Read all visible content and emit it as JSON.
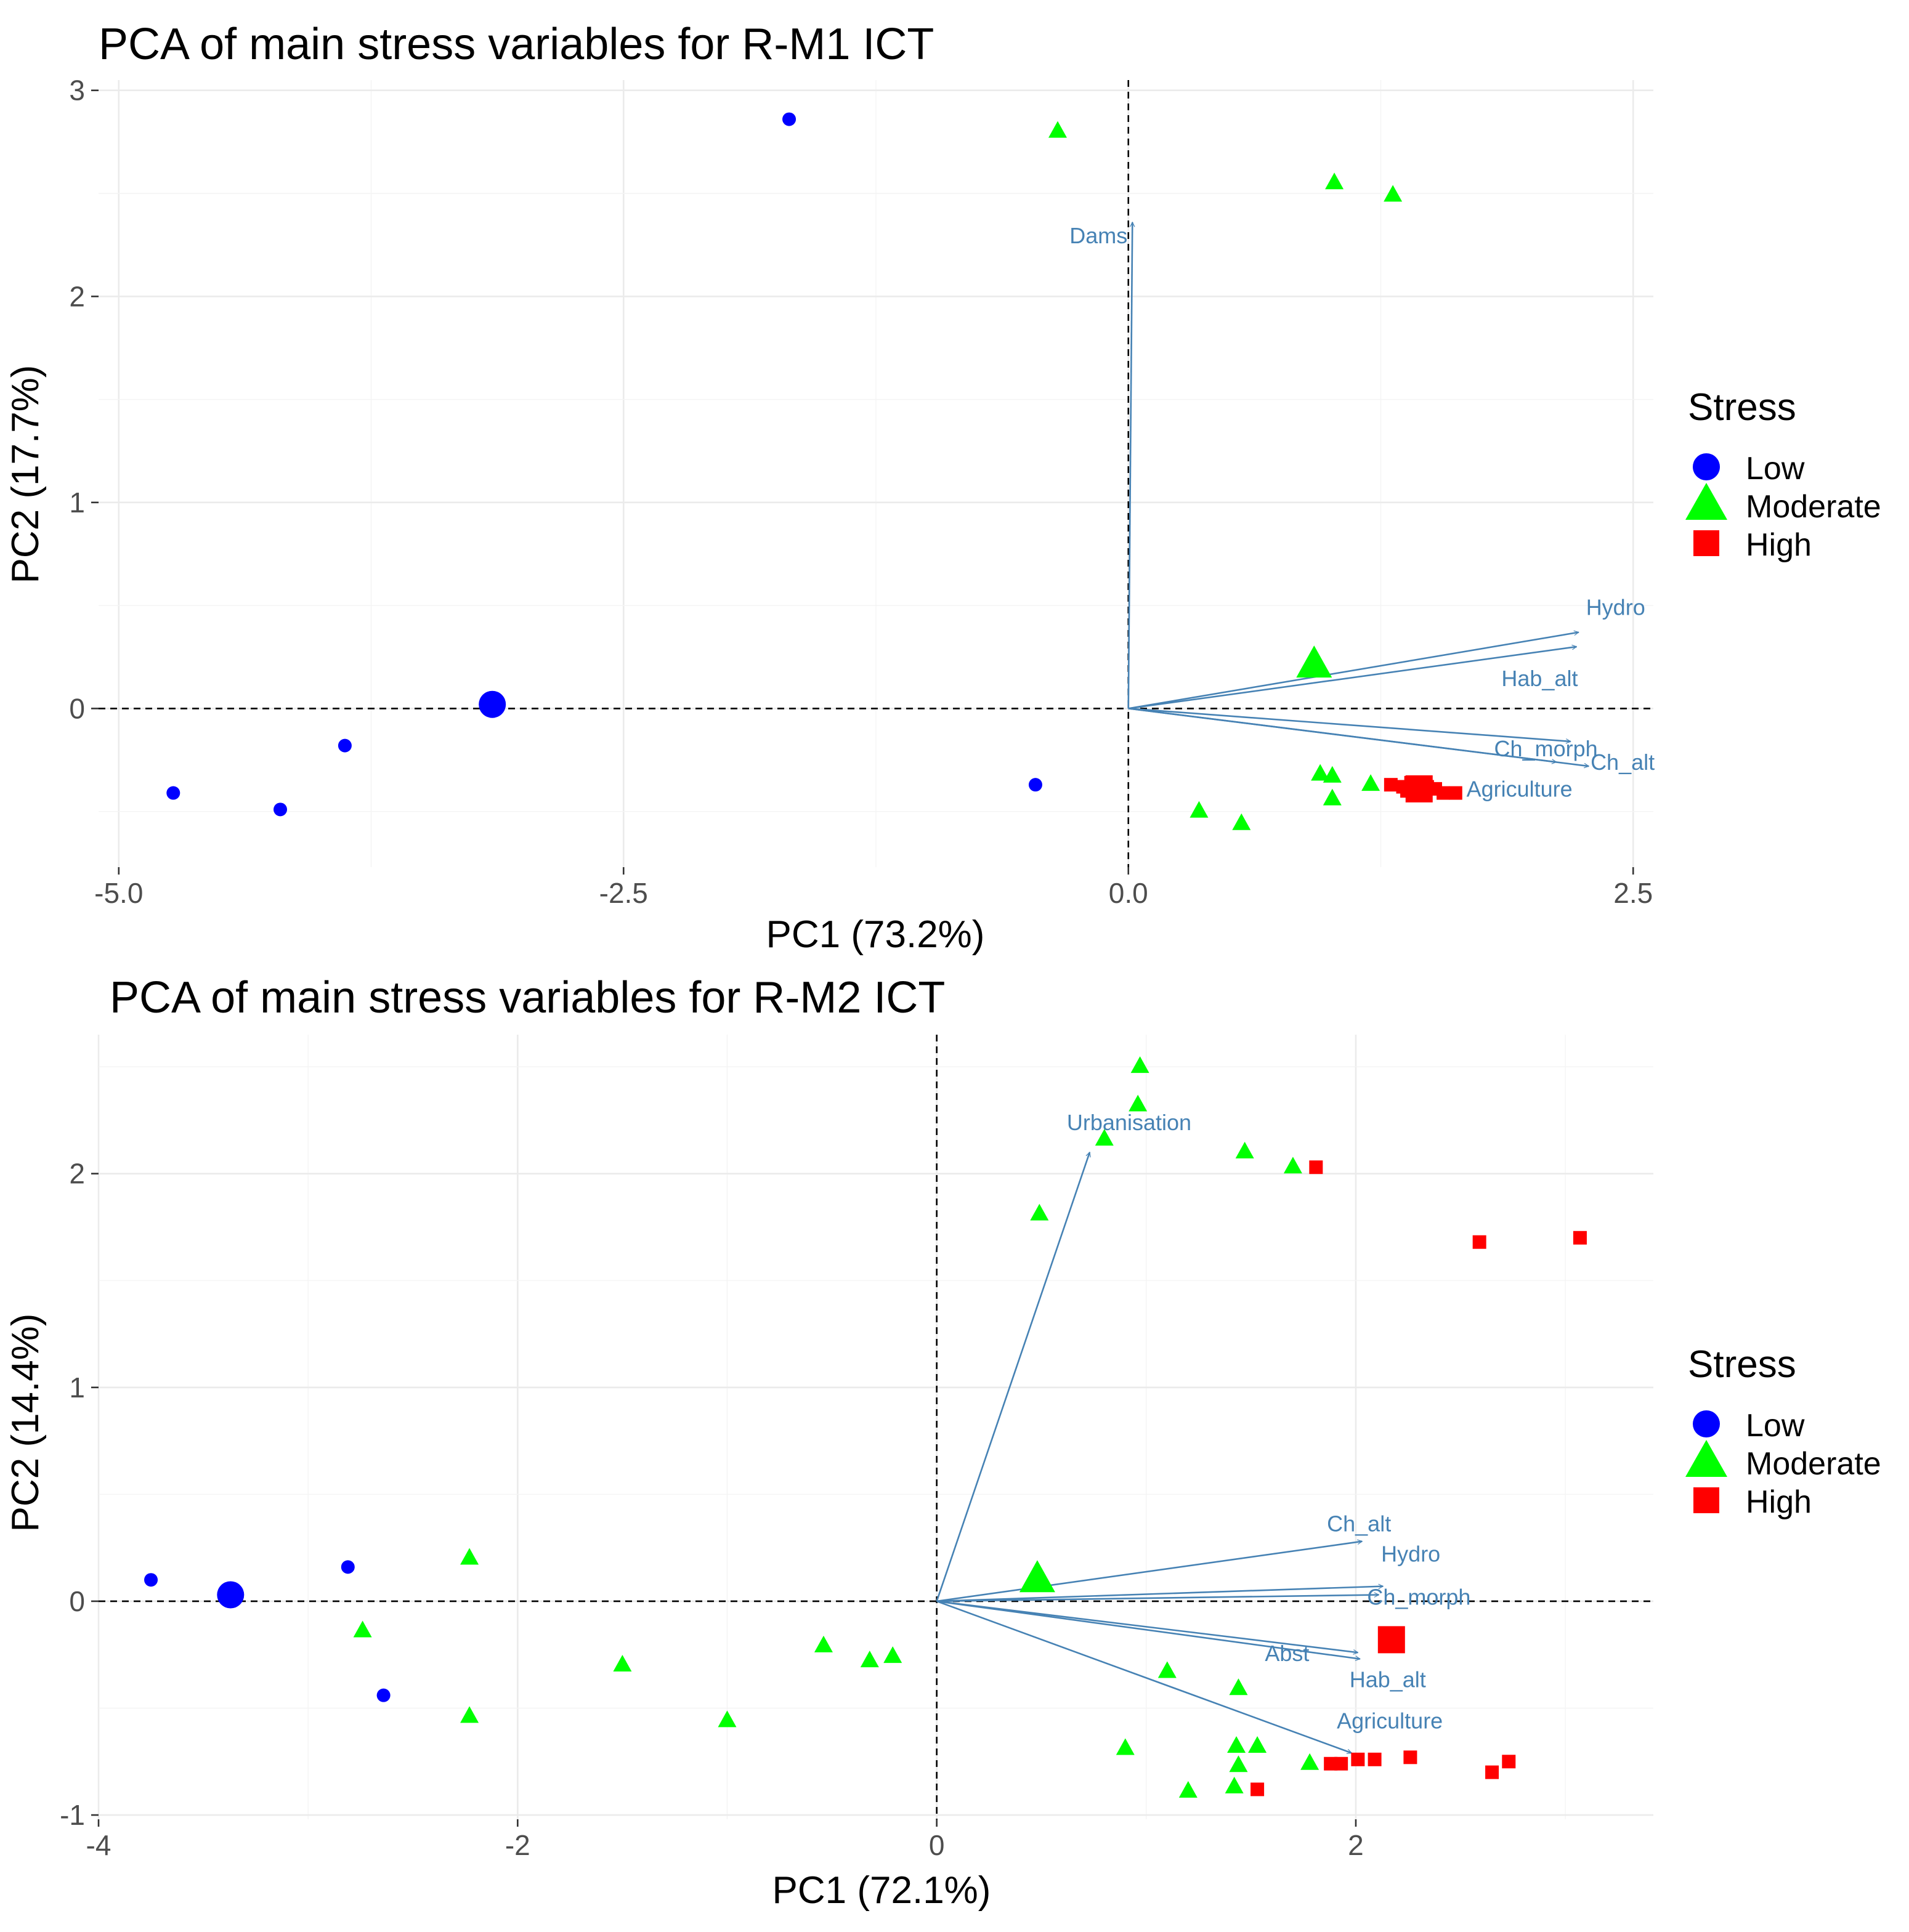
{
  "legend_colors": {
    "Low": "#0000ff",
    "Moderate": "#00ff00",
    "High": "#ff0000"
  },
  "loading_color": "#4682b4",
  "chart_data": [
    {
      "type": "scatter",
      "title": "PCA of main stress variables for R-M1 ICT",
      "xlabel": "PC1 (73.2%)",
      "ylabel": "PC2 (17.7%)",
      "xlim": [
        -5.1,
        2.6
      ],
      "ylim": [
        -0.77,
        3.05
      ],
      "x_ticks": [
        -5.0,
        -2.5,
        0.0,
        2.5
      ],
      "x_tick_labels": [
        "-5.0",
        "-2.5",
        "0.0",
        "2.5"
      ],
      "y_ticks": [
        0,
        1,
        2,
        3
      ],
      "y_tick_labels": [
        "0",
        "1",
        "2",
        "3"
      ],
      "legend": {
        "title": "Stress",
        "entries": [
          "Low",
          "Moderate",
          "High"
        ],
        "position": "right"
      },
      "points": {
        "Low": [
          [
            -1.68,
            2.86
          ],
          [
            -3.88,
            -0.18
          ],
          [
            -4.73,
            -0.41
          ],
          [
            -4.2,
            -0.49
          ],
          [
            -0.46,
            -0.37
          ]
        ],
        "Moderate": [
          [
            -0.35,
            2.8
          ],
          [
            1.02,
            2.55
          ],
          [
            1.31,
            2.49
          ],
          [
            0.95,
            -0.32
          ],
          [
            1.01,
            -0.33
          ],
          [
            1.2,
            -0.37
          ],
          [
            1.01,
            -0.44
          ],
          [
            0.35,
            -0.5
          ],
          [
            0.56,
            -0.56
          ]
        ],
        "High": [
          [
            1.3,
            -0.37
          ],
          [
            1.36,
            -0.38
          ],
          [
            1.4,
            -0.36
          ],
          [
            1.44,
            -0.41
          ],
          [
            1.48,
            -0.38
          ],
          [
            1.52,
            -0.39
          ],
          [
            1.56,
            -0.41
          ],
          [
            1.62,
            -0.41
          ],
          [
            1.38,
            -0.4
          ]
        ]
      },
      "centroids": {
        "Low": [
          -3.15,
          0.02
        ],
        "Moderate": [
          0.92,
          0.21
        ],
        "High": [
          1.44,
          -0.39
        ]
      },
      "loadings": [
        {
          "label": "Dams",
          "x": 0.02,
          "y": 2.36
        },
        {
          "label": "Hydro",
          "x": 2.23,
          "y": 0.37
        },
        {
          "label": "Hab_alt",
          "x": 2.22,
          "y": 0.3
        },
        {
          "label": "Ch_morph",
          "x": 2.19,
          "y": -0.16
        },
        {
          "label": "Ch_alt",
          "x": 2.28,
          "y": -0.28
        },
        {
          "label": "Agriculture",
          "x": 2.12,
          "y": -0.26
        }
      ]
    },
    {
      "type": "scatter",
      "title": "PCA of main stress variables for R-M2 ICT",
      "xlabel": "PC1 (72.1%)",
      "ylabel": "PC2 (14.4%)",
      "xlim": [
        -4.0,
        3.42
      ],
      "ylim": [
        -1.02,
        2.65
      ],
      "x_ticks": [
        -4,
        -2,
        0,
        2
      ],
      "x_tick_labels": [
        "-4",
        "-2",
        "0",
        "2"
      ],
      "y_ticks": [
        -1,
        0,
        1,
        2
      ],
      "y_tick_labels": [
        "-1",
        "0",
        "1",
        "2"
      ],
      "legend": {
        "title": "Stress",
        "entries": [
          "Low",
          "Moderate",
          "High"
        ],
        "position": "right"
      },
      "points": {
        "Low": [
          [
            -3.75,
            0.1
          ],
          [
            -2.81,
            0.16
          ],
          [
            -2.64,
            -0.44
          ]
        ],
        "Moderate": [
          [
            0.97,
            2.5
          ],
          [
            0.96,
            2.32
          ],
          [
            0.8,
            2.16
          ],
          [
            1.47,
            2.1
          ],
          [
            1.7,
            2.03
          ],
          [
            0.49,
            1.81
          ],
          [
            -2.23,
            0.2
          ],
          [
            -2.74,
            -0.14
          ],
          [
            -2.23,
            -0.54
          ],
          [
            -1.5,
            -0.3
          ],
          [
            -1.0,
            -0.56
          ],
          [
            -0.54,
            -0.21
          ],
          [
            -0.32,
            -0.28
          ],
          [
            -0.21,
            -0.26
          ],
          [
            1.1,
            -0.33
          ],
          [
            1.44,
            -0.41
          ],
          [
            0.9,
            -0.69
          ],
          [
            1.43,
            -0.68
          ],
          [
            1.53,
            -0.68
          ],
          [
            1.78,
            -0.76
          ],
          [
            1.44,
            -0.77
          ],
          [
            1.2,
            -0.89
          ],
          [
            1.42,
            -0.87
          ]
        ],
        "High": [
          [
            1.81,
            2.03
          ],
          [
            2.59,
            1.68
          ],
          [
            3.07,
            1.7
          ],
          [
            1.88,
            -0.76
          ],
          [
            1.93,
            -0.76
          ],
          [
            2.01,
            -0.74
          ],
          [
            2.09,
            -0.74
          ],
          [
            2.26,
            -0.73
          ],
          [
            2.65,
            -0.8
          ],
          [
            2.73,
            -0.75
          ],
          [
            1.53,
            -0.88
          ]
        ]
      },
      "centroids": {
        "Low": [
          -3.37,
          0.03
        ],
        "Moderate": [
          0.48,
          0.1
        ],
        "High": [
          2.17,
          -0.18
        ]
      },
      "loadings": [
        {
          "label": "Urbanisation",
          "x": 0.73,
          "y": 2.1
        },
        {
          "label": "Ch_alt",
          "x": 2.03,
          "y": 0.28
        },
        {
          "label": "Hydro",
          "x": 2.13,
          "y": 0.07
        },
        {
          "label": "Ch_morph",
          "x": 2.11,
          "y": 0.03
        },
        {
          "label": "Abst",
          "x": 2.01,
          "y": -0.24
        },
        {
          "label": "Hab_alt",
          "x": 2.02,
          "y": -0.27
        },
        {
          "label": "Agriculture",
          "x": 1.98,
          "y": -0.71
        }
      ]
    }
  ]
}
